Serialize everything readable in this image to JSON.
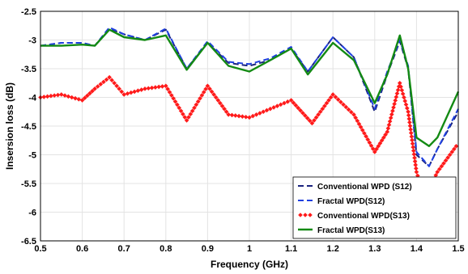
{
  "chart_data": {
    "type": "line",
    "xlabel": "Frequency (GHz)",
    "ylabel": "Insersion loss (dB)",
    "xlim": [
      0.5,
      1.5
    ],
    "ylim": [
      -6.5,
      -2.5
    ],
    "x_ticks": [
      "0.5",
      "0.6",
      "0.7",
      "0.8",
      "0.9",
      "1",
      "1.1",
      "1.2",
      "1.3",
      "1.4",
      "1.5"
    ],
    "y_ticks": [
      "-2.5",
      "-3",
      "-3.5",
      "-4",
      "-4.5",
      "-5",
      "-5.5",
      "-6",
      "-6.5"
    ],
    "grid": true,
    "legend_position": "bottom-right",
    "series": [
      {
        "name": "Conventional WPD (S12)",
        "color": "#1a237e",
        "style": "dash",
        "x": [
          0.5,
          0.55,
          0.6,
          0.63,
          0.665,
          0.7,
          0.75,
          0.8,
          0.85,
          0.9,
          0.95,
          1.0,
          1.05,
          1.1,
          1.14,
          1.2,
          1.25,
          1.3,
          1.33,
          1.36,
          1.38,
          1.4,
          1.43,
          1.45,
          1.5
        ],
        "y": [
          -3.1,
          -3.05,
          -3.05,
          -3.1,
          -2.8,
          -2.9,
          -3.0,
          -2.82,
          -3.5,
          -3.05,
          -3.4,
          -3.45,
          -3.35,
          -3.15,
          -3.55,
          -2.95,
          -3.3,
          -4.25,
          -3.6,
          -3.02,
          -3.5,
          -5.0,
          -5.2,
          -4.9,
          -4.25
        ]
      },
      {
        "name": "Fractal WPD(S12)",
        "color": "#1e3fe0",
        "style": "dash",
        "x": [
          0.5,
          0.55,
          0.6,
          0.63,
          0.665,
          0.7,
          0.75,
          0.8,
          0.85,
          0.9,
          0.95,
          1.0,
          1.05,
          1.1,
          1.14,
          1.2,
          1.25,
          1.3,
          1.33,
          1.36,
          1.38,
          1.4,
          1.43,
          1.45,
          1.5
        ],
        "y": [
          -3.1,
          -3.05,
          -3.05,
          -3.1,
          -2.78,
          -2.9,
          -3.0,
          -2.8,
          -3.5,
          -3.02,
          -3.38,
          -3.42,
          -3.32,
          -3.12,
          -3.55,
          -2.95,
          -3.3,
          -4.2,
          -3.55,
          -3.0,
          -3.45,
          -4.95,
          -5.2,
          -4.9,
          -4.2
        ]
      },
      {
        "name": "Conventional WPD(S13)",
        "color": "#ff1a1a",
        "style": "diamond",
        "x": [
          0.5,
          0.55,
          0.6,
          0.63,
          0.665,
          0.7,
          0.75,
          0.8,
          0.85,
          0.9,
          0.95,
          1.0,
          1.05,
          1.1,
          1.15,
          1.2,
          1.25,
          1.3,
          1.33,
          1.36,
          1.38,
          1.4,
          1.42,
          1.45,
          1.5
        ],
        "y": [
          -4.0,
          -3.95,
          -4.05,
          -3.85,
          -3.65,
          -3.95,
          -3.85,
          -3.8,
          -4.4,
          -3.8,
          -4.3,
          -4.35,
          -4.2,
          -4.05,
          -4.45,
          -3.95,
          -4.3,
          -4.95,
          -4.6,
          -3.75,
          -4.25,
          -5.3,
          -5.75,
          -5.3,
          -4.8
        ]
      },
      {
        "name": "Fractal WPD(S13)",
        "color": "#138a13",
        "style": "solid",
        "x": [
          0.5,
          0.55,
          0.6,
          0.63,
          0.665,
          0.7,
          0.75,
          0.8,
          0.85,
          0.9,
          0.95,
          1.0,
          1.05,
          1.1,
          1.14,
          1.2,
          1.25,
          1.3,
          1.33,
          1.36,
          1.38,
          1.4,
          1.43,
          1.45,
          1.5
        ],
        "y": [
          -3.1,
          -3.1,
          -3.08,
          -3.1,
          -2.82,
          -2.95,
          -3.0,
          -2.92,
          -3.52,
          -3.05,
          -3.45,
          -3.55,
          -3.35,
          -3.15,
          -3.6,
          -3.05,
          -3.35,
          -4.1,
          -3.6,
          -2.92,
          -3.5,
          -4.7,
          -4.85,
          -4.7,
          -3.9
        ]
      }
    ],
    "legend": [
      "Conventional WPD (S12)",
      "Fractal WPD(S12)",
      "Conventional WPD(S13)",
      "Fractal WPD(S13)"
    ]
  }
}
